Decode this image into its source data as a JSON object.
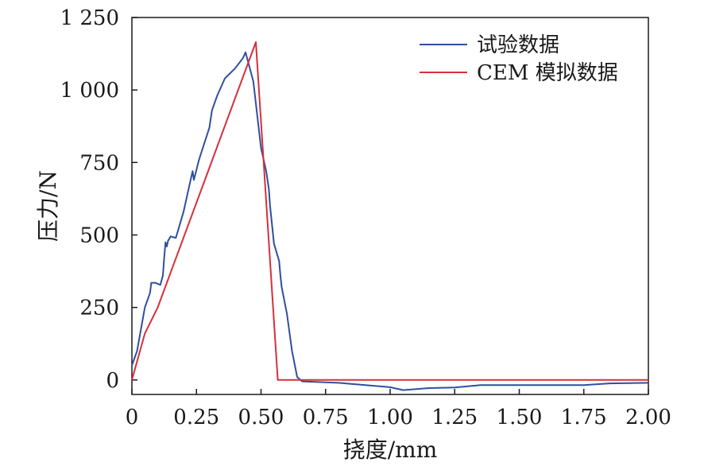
{
  "chart_data": {
    "type": "line",
    "xlabel": "挠度/mm",
    "ylabel": "压力/N",
    "xlim": [
      0,
      2.0
    ],
    "ylim": [
      -50,
      1250
    ],
    "x_ticks": [
      {
        "value": 0,
        "label": "0"
      },
      {
        "value": 0.25,
        "label": "0.25"
      },
      {
        "value": 0.5,
        "label": "0.50"
      },
      {
        "value": 0.75,
        "label": "0.75"
      },
      {
        "value": 1.0,
        "label": "1.00"
      },
      {
        "value": 1.25,
        "label": "1.25"
      },
      {
        "value": 1.5,
        "label": "1.50"
      },
      {
        "value": 1.75,
        "label": "1.75"
      },
      {
        "value": 2.0,
        "label": "2.00"
      }
    ],
    "y_ticks": [
      {
        "value": 0,
        "label": "0"
      },
      {
        "value": 250,
        "label": "250"
      },
      {
        "value": 500,
        "label": "500"
      },
      {
        "value": 750,
        "label": "750"
      },
      {
        "value": 1000,
        "label": "1 000"
      },
      {
        "value": 1250,
        "label": "1 250"
      }
    ],
    "grid": false,
    "legend_position": "top-right",
    "series": [
      {
        "name": "试验数据",
        "color": "#2f4f9e",
        "points": [
          [
            0.0,
            50
          ],
          [
            0.02,
            100
          ],
          [
            0.05,
            250
          ],
          [
            0.07,
            300
          ],
          [
            0.075,
            335
          ],
          [
            0.09,
            335
          ],
          [
            0.11,
            328
          ],
          [
            0.12,
            360
          ],
          [
            0.125,
            420
          ],
          [
            0.13,
            475
          ],
          [
            0.135,
            460
          ],
          [
            0.14,
            480
          ],
          [
            0.15,
            495
          ],
          [
            0.17,
            490
          ],
          [
            0.2,
            580
          ],
          [
            0.225,
            680
          ],
          [
            0.235,
            720
          ],
          [
            0.24,
            690
          ],
          [
            0.26,
            760
          ],
          [
            0.3,
            870
          ],
          [
            0.31,
            930
          ],
          [
            0.33,
            980
          ],
          [
            0.36,
            1040
          ],
          [
            0.4,
            1075
          ],
          [
            0.43,
            1110
          ],
          [
            0.44,
            1130
          ],
          [
            0.47,
            1030
          ],
          [
            0.5,
            800
          ],
          [
            0.52,
            720
          ],
          [
            0.53,
            660
          ],
          [
            0.535,
            600
          ],
          [
            0.55,
            470
          ],
          [
            0.57,
            410
          ],
          [
            0.575,
            360
          ],
          [
            0.58,
            320
          ],
          [
            0.6,
            230
          ],
          [
            0.62,
            100
          ],
          [
            0.64,
            10
          ],
          [
            0.66,
            -5
          ],
          [
            0.8,
            -10
          ],
          [
            1.0,
            -25
          ],
          [
            1.05,
            -35
          ],
          [
            1.15,
            -28
          ],
          [
            1.25,
            -26
          ],
          [
            1.35,
            -18
          ],
          [
            1.5,
            -18
          ],
          [
            1.75,
            -18
          ],
          [
            1.85,
            -12
          ],
          [
            2.0,
            -10
          ]
        ]
      },
      {
        "name": "CEM 模拟数据",
        "color": "#d6303b",
        "points": [
          [
            0.0,
            0
          ],
          [
            0.05,
            160
          ],
          [
            0.1,
            250
          ],
          [
            0.48,
            1165
          ],
          [
            0.565,
            0
          ],
          [
            2.0,
            0
          ]
        ]
      }
    ]
  }
}
